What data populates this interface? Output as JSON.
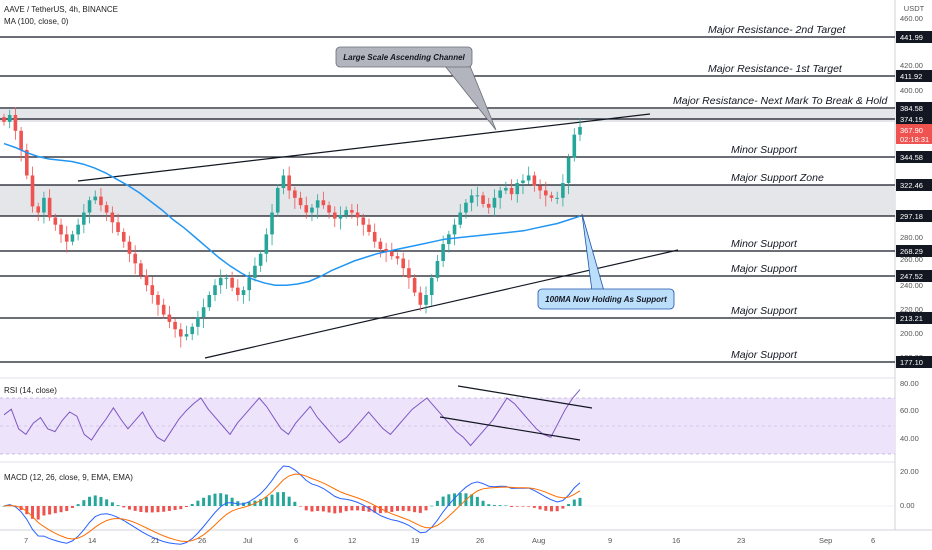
{
  "header": {
    "symbol": "AAVE / TetherUS, 4h, BINANCE",
    "ma_label": "MA (100, close, 0)",
    "currency": "USDT"
  },
  "price_axis": {
    "ticks": [
      "460.00",
      "420.00",
      "400.00",
      "280.00",
      "260.00",
      "240.00",
      "220.00",
      "200.00",
      "180.00"
    ]
  },
  "levels": [
    {
      "price": 441.99,
      "tag": "441.99",
      "label": "Major Resistance- 2nd Target"
    },
    {
      "price": 411.92,
      "tag": "411.92",
      "label": "Major Resistance- 1st Target"
    },
    {
      "price": 384.58,
      "tag": "384.58",
      "label": "Major Resistance- Next Mark To Break & Hold"
    },
    {
      "price": 374.19,
      "tag": "374.19",
      "label": ""
    },
    {
      "price": 344.58,
      "tag": "344.58",
      "label": "Minor Support"
    },
    {
      "price": 322.46,
      "tag": "322.46",
      "label": "Major Support Zone"
    },
    {
      "price": 297.18,
      "tag": "297.18",
      "label": ""
    },
    {
      "price": 268.29,
      "tag": "268.29",
      "label": "Minor Support"
    },
    {
      "price": 247.52,
      "tag": "247.52",
      "label": "Major Support"
    },
    {
      "price": 213.21,
      "tag": "213.21",
      "label": "Major Support"
    },
    {
      "price": 177.1,
      "tag": "177.10",
      "label": "Major Support"
    }
  ],
  "current_price": {
    "value": "367.90",
    "countdown": "02:18:31",
    "color": "#ef5350"
  },
  "callouts": {
    "channel": "Large Scale Ascending Channel",
    "ma_support": "100MA Now Holding As Support"
  },
  "rsi": {
    "label": "RSI (14, close)",
    "ticks": [
      "80.00",
      "60.00",
      "40.00"
    ]
  },
  "macd": {
    "label": "MACD (12, 26, close, 9, EMA, EMA)",
    "ticks": [
      "20.00",
      "0.00"
    ]
  },
  "time_axis": [
    "7",
    "14",
    "21",
    "26",
    "Jul",
    "6",
    "12",
    "19",
    "26",
    "Aug",
    "9",
    "16",
    "23",
    "Sep",
    "6"
  ],
  "colors": {
    "up": "#26a69a",
    "down": "#ef5350",
    "ma": "#2196f3",
    "rsi": "#7e57c2",
    "rsi_band": "#ede3fb",
    "macd_line": "#2962ff",
    "signal_line": "#ff6d00"
  },
  "chart_data": {
    "type": "candlestick",
    "ylim": [
      160,
      465
    ],
    "close_series": [
      372,
      378,
      365,
      350,
      330,
      305,
      300,
      312,
      296,
      290,
      282,
      276,
      282,
      290,
      300,
      310,
      313,
      306,
      300,
      292,
      284,
      276,
      266,
      258,
      248,
      240,
      232,
      224,
      216,
      210,
      204,
      198,
      200,
      206,
      214,
      222,
      232,
      240,
      246,
      246,
      238,
      232,
      236,
      246,
      256,
      266,
      282,
      300,
      320,
      330,
      318,
      312,
      306,
      300,
      304,
      310,
      306,
      300,
      295,
      298,
      302,
      300,
      296,
      290,
      284,
      276,
      270,
      268,
      264,
      262,
      254,
      246,
      234,
      224,
      232,
      246,
      260,
      274,
      282,
      290,
      300,
      308,
      314,
      314,
      307,
      304,
      312,
      318,
      320,
      315,
      324,
      326,
      330,
      322,
      318,
      314,
      312,
      312,
      324,
      344,
      362,
      368
    ],
    "ma100_series": [
      355,
      352,
      348,
      345,
      343,
      342,
      341,
      339,
      336,
      332,
      327,
      322,
      316,
      309,
      302,
      294,
      287,
      279,
      271,
      263,
      256,
      250,
      245,
      242,
      240,
      240,
      241,
      243,
      247,
      252,
      256,
      260,
      263,
      266,
      268,
      270,
      272,
      274,
      276,
      278,
      279,
      280,
      281,
      282,
      283,
      284,
      285,
      287,
      289,
      291,
      294,
      297
    ],
    "rsi_series": [
      58,
      62,
      48,
      44,
      52,
      56,
      48,
      46,
      54,
      60,
      57,
      44,
      40,
      48,
      55,
      63,
      55,
      48,
      54,
      60,
      50,
      42,
      39,
      47,
      55,
      61,
      66,
      70,
      62,
      56,
      50,
      44,
      52,
      58,
      64,
      70,
      64,
      56,
      48,
      44,
      52,
      58,
      64,
      56,
      50,
      44,
      38,
      42,
      48,
      54,
      60,
      54,
      48,
      44,
      50,
      56,
      62,
      66,
      70,
      64,
      58,
      52,
      46,
      42,
      36,
      42,
      48,
      54,
      62,
      70,
      66,
      60,
      54,
      48,
      44,
      42,
      52,
      62,
      70,
      76
    ]
  }
}
